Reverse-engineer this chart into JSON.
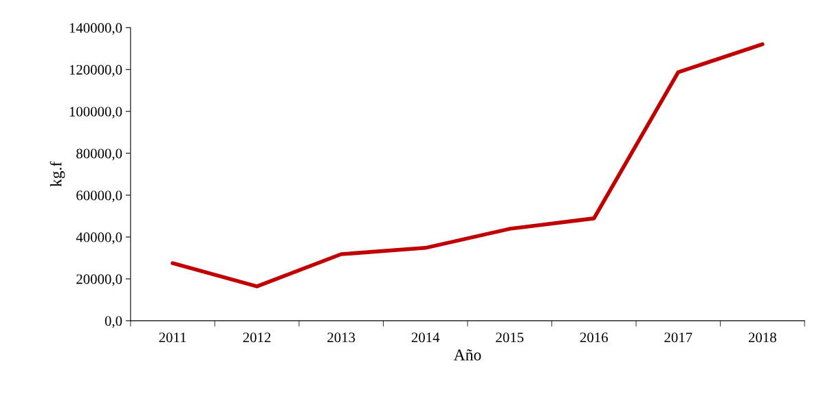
{
  "chart_data": {
    "type": "line",
    "xlabel": "Año",
    "ylabel": "kg.f",
    "categories": [
      "2011",
      "2012",
      "2013",
      "2014",
      "2015",
      "2016",
      "2017",
      "2018"
    ],
    "series": [
      {
        "color": "#c00000",
        "values": [
          27500,
          16400,
          31800,
          34800,
          43900,
          48900,
          118700,
          132100
        ]
      }
    ],
    "ylim": [
      0,
      140000
    ],
    "yticks": [
      {
        "value": 0,
        "label": "0,0"
      },
      {
        "value": 20000,
        "label": "20000,0"
      },
      {
        "value": 40000,
        "label": "40000,0"
      },
      {
        "value": 60000,
        "label": "60000,0"
      },
      {
        "value": 80000,
        "label": "80000,0"
      },
      {
        "value": 100000,
        "label": "100000,0"
      },
      {
        "value": 120000,
        "label": "120000,0"
      },
      {
        "value": 140000,
        "label": "140000,0"
      }
    ],
    "grid": false,
    "marker": "none",
    "line_style": "solid"
  }
}
